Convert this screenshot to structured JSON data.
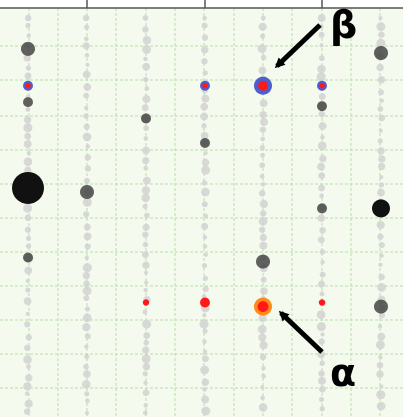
{
  "chart_data": {
    "type": "scatter",
    "title": "",
    "xlabel": "",
    "ylabel": "",
    "grid": true,
    "columns": 7,
    "xlim": [
      0,
      7
    ],
    "ylim": [
      0,
      100
    ],
    "colors": {
      "background": "#f4faee",
      "grid": "#b9deaa",
      "axis": "#555555",
      "light": "#d2d2d2",
      "dark": "#3b3b3b",
      "black": "#111111",
      "red": "#ff1a1a",
      "blue": "#4b5fd2",
      "orange": "#ff8a1a"
    },
    "annotations": [
      {
        "label": "β",
        "x": 4,
        "y": 82
      },
      {
        "label": "α",
        "x": 4,
        "y": 27
      }
    ],
    "highlight_points": [
      {
        "x": 0,
        "y": 90,
        "size": 3,
        "kind": "dark"
      },
      {
        "x": 0,
        "y": 81,
        "size": 2,
        "kind": "blue"
      },
      {
        "x": 0,
        "y": 77,
        "size": 2,
        "kind": "dark"
      },
      {
        "x": 0,
        "y": 56,
        "size": 6,
        "kind": "black"
      },
      {
        "x": 0,
        "y": 39,
        "size": 2,
        "kind": "dark"
      },
      {
        "x": 1,
        "y": 55,
        "size": 3,
        "kind": "dark"
      },
      {
        "x": 2,
        "y": 73,
        "size": 2,
        "kind": "dark"
      },
      {
        "x": 2,
        "y": 28,
        "size": 1,
        "kind": "red"
      },
      {
        "x": 3,
        "y": 81,
        "size": 2,
        "kind": "blue"
      },
      {
        "x": 3,
        "y": 67,
        "size": 2,
        "kind": "dark"
      },
      {
        "x": 3,
        "y": 28,
        "size": 2,
        "kind": "red"
      },
      {
        "x": 4,
        "y": 81,
        "size": 4,
        "kind": "blue"
      },
      {
        "x": 4,
        "y": 27,
        "size": 4,
        "kind": "orange"
      },
      {
        "x": 4,
        "y": 38,
        "size": 3,
        "kind": "dark"
      },
      {
        "x": 5,
        "y": 81,
        "size": 2,
        "kind": "blue"
      },
      {
        "x": 5,
        "y": 76,
        "size": 2,
        "kind": "dark"
      },
      {
        "x": 5,
        "y": 51,
        "size": 2,
        "kind": "dark"
      },
      {
        "x": 5,
        "y": 28,
        "size": 1,
        "kind": "red"
      },
      {
        "x": 6,
        "y": 89,
        "size": 3,
        "kind": "dark"
      },
      {
        "x": 6,
        "y": 51,
        "size": 4,
        "kind": "black"
      },
      {
        "x": 6,
        "y": 27,
        "size": 3,
        "kind": "dark"
      }
    ]
  }
}
